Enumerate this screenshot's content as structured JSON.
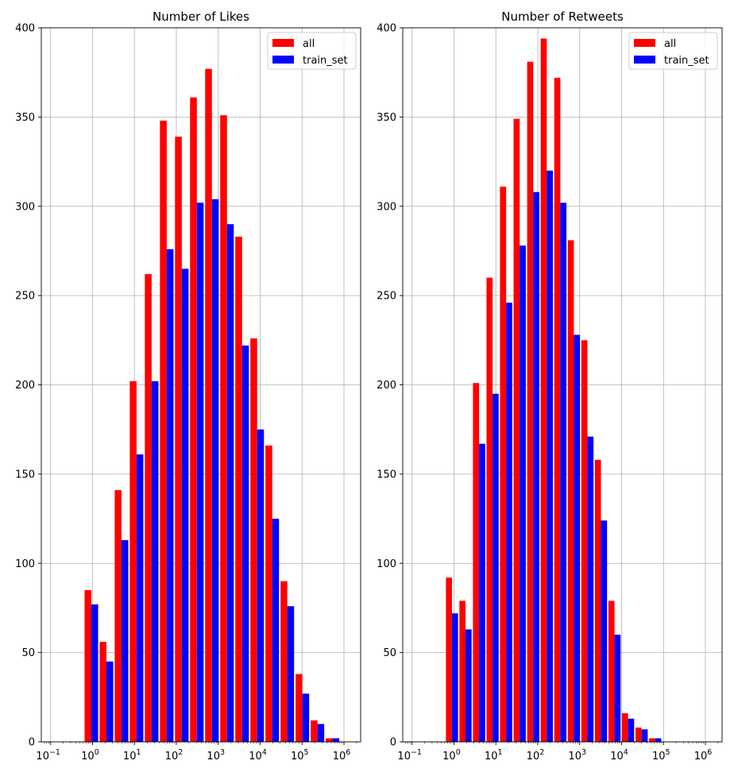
{
  "chart_data": [
    {
      "type": "bar",
      "title": "Number of Likes",
      "xlabel": "",
      "ylabel": "",
      "xscale": "log",
      "xlim": [
        0.06,
        2500000
      ],
      "ylim": [
        0,
        400
      ],
      "yticks": [
        "0",
        "50",
        "100",
        "150",
        "200",
        "250",
        "300",
        "350",
        "400"
      ],
      "xtick_bases": [
        "10",
        "10",
        "10",
        "10",
        "10",
        "10",
        "10",
        "10"
      ],
      "xtick_exponents": [
        "−1",
        "0",
        "1",
        "2",
        "3",
        "4",
        "5",
        "6"
      ],
      "grid": true,
      "legend_position": "top-right",
      "legend": [
        "all",
        "train_set"
      ],
      "bin_edges": [
        0.62,
        1.42,
        3.25,
        7.44,
        17.0,
        39.0,
        89.2,
        204,
        467,
        1069,
        2448,
        5603,
        12826,
        29360,
        67210,
        153850,
        352170,
        806160
      ],
      "series": [
        {
          "name": "all",
          "color": "#ff0000",
          "values": [
            85,
            56,
            141,
            202,
            262,
            348,
            339,
            361,
            377,
            351,
            283,
            226,
            166,
            90,
            38,
            12,
            2
          ]
        },
        {
          "name": "train_set",
          "color": "#0000ff",
          "values": [
            77,
            45,
            113,
            161,
            202,
            276,
            265,
            302,
            304,
            290,
            222,
            175,
            125,
            76,
            27,
            10,
            2
          ]
        }
      ]
    },
    {
      "type": "bar",
      "title": "Number of Retweets",
      "xlabel": "",
      "ylabel": "",
      "xscale": "log",
      "xlim": [
        0.06,
        2500000
      ],
      "ylim": [
        0,
        400
      ],
      "yticks": [
        "0",
        "50",
        "100",
        "150",
        "200",
        "250",
        "300",
        "350",
        "400"
      ],
      "xtick_bases": [
        "10",
        "10",
        "10",
        "10",
        "10",
        "10",
        "10",
        "10"
      ],
      "xtick_exponents": [
        "−1",
        "0",
        "1",
        "2",
        "3",
        "4",
        "5",
        "6"
      ],
      "grid": true,
      "legend_position": "top-right",
      "legend": [
        "all",
        "train_set"
      ],
      "bin_edges": [
        0.62,
        1.3,
        2.74,
        5.77,
        12.1,
        25.5,
        53.8,
        113,
        238,
        501,
        1054,
        2219,
        4670,
        9830,
        20690,
        43550,
        91660,
        192920,
        406060
      ],
      "series": [
        {
          "name": "all",
          "color": "#ff0000",
          "values": [
            92,
            79,
            201,
            260,
            311,
            349,
            381,
            394,
            372,
            281,
            225,
            158,
            79,
            16,
            8,
            2,
            0,
            0
          ]
        },
        {
          "name": "train_set",
          "color": "#0000ff",
          "values": [
            72,
            63,
            167,
            195,
            246,
            278,
            308,
            320,
            302,
            228,
            171,
            124,
            60,
            13,
            7,
            2,
            0,
            0
          ]
        }
      ]
    }
  ]
}
